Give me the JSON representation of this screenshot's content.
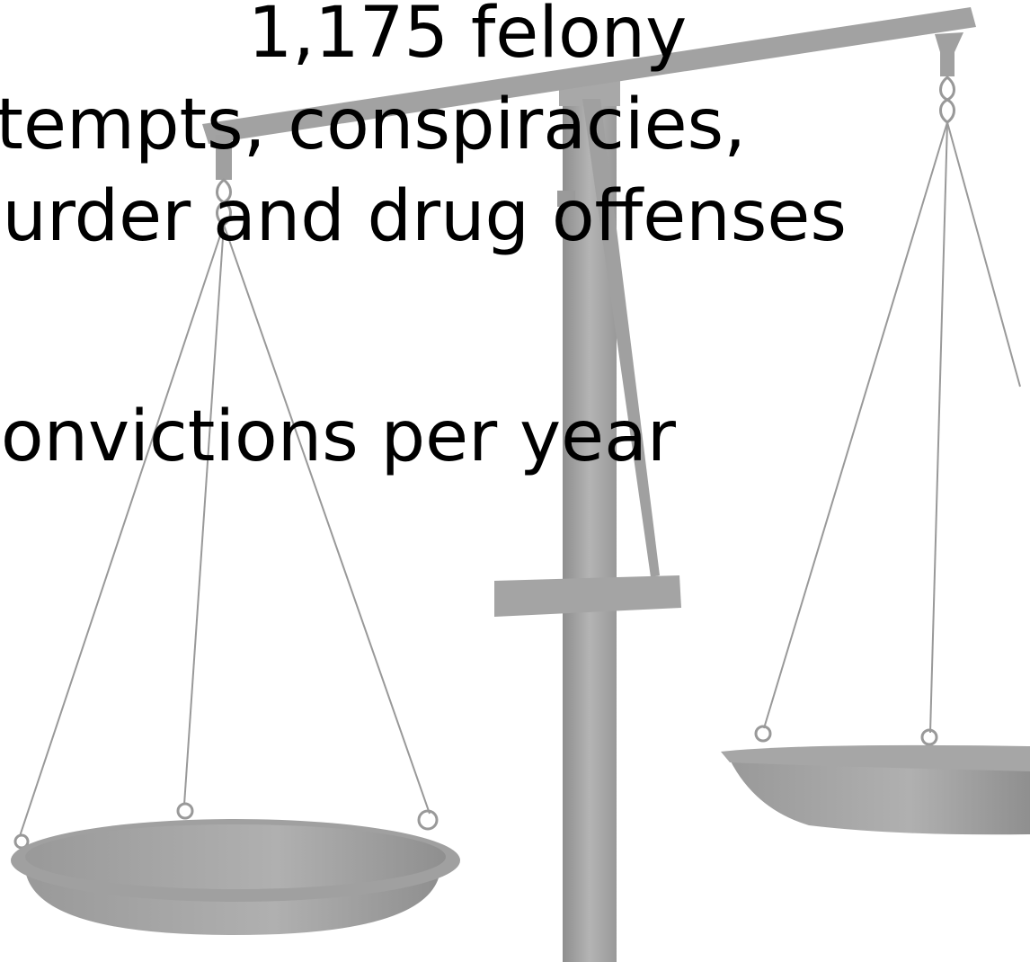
{
  "slide": {
    "lines": [
      "1,175 felony",
      "attempts, conspiracies,",
      "murder and drug offenses",
      "convictions per year"
    ]
  }
}
